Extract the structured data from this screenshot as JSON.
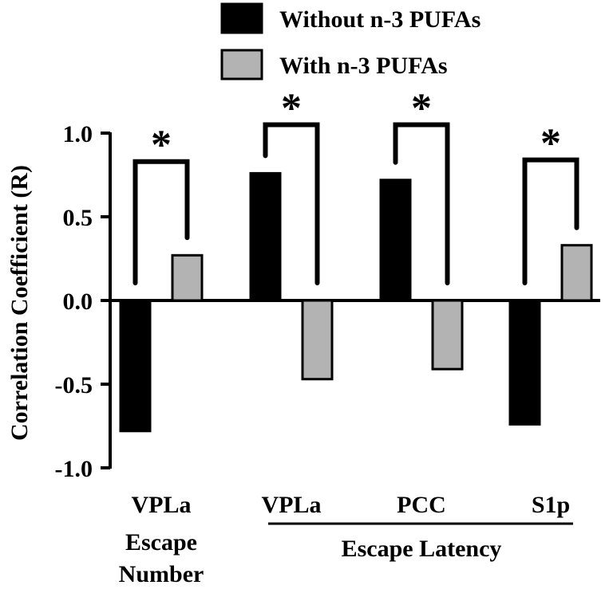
{
  "chart_data": {
    "type": "bar",
    "ylabel": "Correlation Coefficient (R)",
    "ylim": [
      -1.0,
      1.0
    ],
    "yticks": [
      "1.0",
      "0.5",
      "0.0",
      "-0.5",
      "-1.0"
    ],
    "ytick_values": [
      1.0,
      0.5,
      0.0,
      -0.5,
      -1.0
    ],
    "categories": [
      "VPLa",
      "VPLa",
      "PCC",
      "S1p"
    ],
    "group_labels": [
      {
        "lines": [
          "Escape",
          "Number"
        ]
      },
      {
        "lines": [
          "Escape Latency"
        ]
      }
    ],
    "series": [
      {
        "name": "Without n-3 PUFAs",
        "color": "#000000",
        "values": [
          -0.78,
          0.76,
          0.72,
          -0.74
        ]
      },
      {
        "name": "With n-3 PUFAs",
        "color": "#b3b3b3",
        "values": [
          0.27,
          -0.47,
          -0.41,
          0.33
        ]
      }
    ],
    "significance": [
      "*",
      "*",
      "*",
      "*"
    ],
    "legend": "top",
    "grid": false
  }
}
